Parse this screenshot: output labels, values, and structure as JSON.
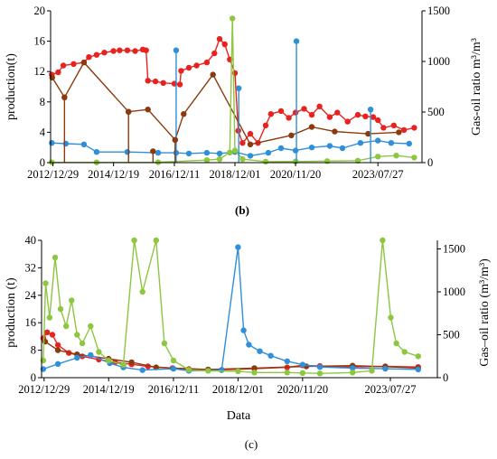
{
  "chart_data": [
    {
      "panel": "(b)",
      "type": "line",
      "title": "",
      "xlabel": "",
      "ylabel": "production(t)",
      "y2label": "Gas-oil ratio m³/m³",
      "xticks": [
        "2012/12/29",
        "2014/12/19",
        "2016/12/11",
        "2018/12/01",
        "2020/11/20",
        "2023/07/27"
      ],
      "yticks": [
        0,
        4,
        8,
        12,
        16,
        20
      ],
      "y2ticks": [
        0,
        500,
        1000,
        1500
      ],
      "ylim": [
        0,
        20
      ],
      "y2lim": [
        0,
        1500
      ],
      "xlim": [
        "2012-12-01",
        "2025-01-01"
      ],
      "grid": false,
      "legend": "none",
      "series": [
        {
          "color": "#e8231f",
          "axis": "left",
          "marker": "circle",
          "points": [
            [
              "2012-12-15",
              11.6
            ],
            [
              "2013-03-01",
              11.9
            ],
            [
              "2013-05-01",
              12.8
            ],
            [
              "2013-09-01",
              13.0
            ],
            [
              "2014-01-01",
              13.2
            ],
            [
              "2014-03-01",
              13.9
            ],
            [
              "2014-06-01",
              14.2
            ],
            [
              "2014-09-01",
              14.5
            ],
            [
              "2014-12-19",
              14.7
            ],
            [
              "2015-03-01",
              14.8
            ],
            [
              "2015-06-01",
              14.8
            ],
            [
              "2015-09-01",
              14.7
            ],
            [
              "2015-12-01",
              14.9
            ],
            [
              "2016-01-10",
              14.8
            ],
            [
              "2016-02-01",
              10.8
            ],
            [
              "2016-05-01",
              10.7
            ],
            [
              "2016-08-01",
              10.5
            ],
            [
              "2016-12-11",
              10.4
            ],
            [
              "2017-02-15",
              10.3
            ],
            [
              "2017-03-01",
              12.1
            ],
            [
              "2017-06-01",
              12.5
            ],
            [
              "2017-09-01",
              12.8
            ],
            [
              "2018-01-01",
              13.2
            ],
            [
              "2018-04-01",
              14.4
            ],
            [
              "2018-06-01",
              16.3
            ],
            [
              "2018-08-01",
              15.6
            ],
            [
              "2018-10-01",
              13.6
            ],
            [
              "2018-12-01",
              11.8
            ],
            [
              "2019-01-10",
              4.2
            ],
            [
              "2019-03-01",
              2.6
            ],
            [
              "2019-06-01",
              3.8
            ],
            [
              "2019-09-01",
              2.6
            ],
            [
              "2019-12-01",
              4.9
            ],
            [
              "2020-02-01",
              6.4
            ],
            [
              "2020-06-01",
              6.8
            ],
            [
              "2020-09-01",
              5.9
            ],
            [
              "2020-11-20",
              6.6
            ],
            [
              "2021-03-01",
              7.1
            ],
            [
              "2021-06-01",
              6.3
            ],
            [
              "2021-09-01",
              7.4
            ],
            [
              "2022-01-01",
              6.0
            ],
            [
              "2022-04-01",
              6.6
            ],
            [
              "2022-08-01",
              5.4
            ],
            [
              "2022-12-01",
              6.3
            ],
            [
              "2023-03-01",
              6.1
            ],
            [
              "2023-06-01",
              6.0
            ],
            [
              "2023-07-27",
              5.6
            ],
            [
              "2023-10-01",
              4.6
            ],
            [
              "2024-02-01",
              4.9
            ],
            [
              "2024-06-01",
              4.3
            ],
            [
              "2024-10-01",
              4.6
            ]
          ]
        },
        {
          "color": "#8b3a0e",
          "axis": "left",
          "marker": "circle",
          "points": [
            [
              "2012-12-20",
              11.2
            ],
            [
              "2013-05-15",
              8.6
            ],
            [
              "2014-01-01",
              13.2
            ],
            [
              "2015-06-15",
              6.7
            ],
            [
              "2016-02-01",
              7.0
            ],
            [
              "2016-12-20",
              3.0
            ],
            [
              "2017-04-01",
              6.4
            ],
            [
              "2018-03-15",
              11.6
            ],
            [
              "2019-06-01",
              2.4
            ],
            [
              "2020-10-01",
              3.6
            ],
            [
              "2021-06-01",
              4.7
            ],
            [
              "2022-03-01",
              4.1
            ],
            [
              "2023-04-01",
              3.8
            ],
            [
              "2024-04-01",
              4.0
            ]
          ]
        },
        {
          "color": "#2f8fd8",
          "axis": "left",
          "marker": "circle",
          "points": [
            [
              "2012-12-15",
              2.6
            ],
            [
              "2013-06-01",
              2.5
            ],
            [
              "2014-01-01",
              2.4
            ],
            [
              "2014-06-01",
              1.4
            ],
            [
              "2015-06-01",
              1.4
            ],
            [
              "2016-06-01",
              1.3
            ],
            [
              "2017-01-01",
              1.3
            ],
            [
              "2017-06-01",
              1.2
            ],
            [
              "2018-01-01",
              1.3
            ],
            [
              "2018-06-01",
              1.2
            ],
            [
              "2018-12-01",
              1.4
            ],
            [
              "2019-06-01",
              0.9
            ],
            [
              "2020-01-01",
              1.3
            ],
            [
              "2020-06-01",
              1.9
            ],
            [
              "2020-11-20",
              1.6
            ],
            [
              "2021-06-01",
              2.0
            ],
            [
              "2022-01-01",
              2.2
            ],
            [
              "2022-06-01",
              1.9
            ],
            [
              "2023-01-01",
              2.6
            ],
            [
              "2023-07-27",
              2.9
            ],
            [
              "2024-01-01",
              2.6
            ],
            [
              "2024-08-01",
              2.5
            ]
          ]
        },
        {
          "color": "#8dc63f",
          "axis": "right",
          "marker": "circle",
          "points": [
            [
              "2012-12-15",
              3
            ],
            [
              "2014-06-01",
              3
            ],
            [
              "2016-06-01",
              4
            ],
            [
              "2018-01-01",
              25
            ],
            [
              "2018-06-01",
              35
            ],
            [
              "2018-10-01",
              100
            ],
            [
              "2018-11-01",
              1425
            ],
            [
              "2018-12-01",
              120
            ],
            [
              "2019-03-01",
              35
            ],
            [
              "2019-12-01",
              10
            ],
            [
              "2020-11-20",
              12
            ],
            [
              "2021-12-01",
              15
            ],
            [
              "2022-12-01",
              20
            ],
            [
              "2023-07-27",
              60
            ],
            [
              "2024-03-01",
              70
            ],
            [
              "2024-10-01",
              50
            ]
          ]
        }
      ],
      "spikes": [
        {
          "color": "#2f8fd8",
          "axis": "left",
          "x": "2017-01-01",
          "y": 14.8
        },
        {
          "color": "#2f8fd8",
          "axis": "left",
          "x": "2020-12-01",
          "y": 16.0
        },
        {
          "color": "#2f8fd8",
          "axis": "left",
          "x": "2019-01-15",
          "y": 9.8
        },
        {
          "color": "#2f8fd8",
          "axis": "left",
          "x": "2023-05-01",
          "y": 7.0
        },
        {
          "color": "#8b3a0e",
          "axis": "left",
          "x": "2013-05-15",
          "y": 8.6
        },
        {
          "color": "#8b3a0e",
          "axis": "left",
          "x": "2015-06-15",
          "y": 6.7
        },
        {
          "color": "#8b3a0e",
          "axis": "left",
          "x": "2016-12-20",
          "y": 3.0
        },
        {
          "color": "#8b3a0e",
          "axis": "left",
          "x": "2016-04-01",
          "y": 1.5
        }
      ]
    },
    {
      "panel": "(c)",
      "type": "line",
      "title": "",
      "xlabel": "Data",
      "ylabel": "production (t)",
      "y2label": "Gas–oil ratio (m³/m³)",
      "xticks": [
        "2012/12/29",
        "2014/12/19",
        "2016/12/11",
        "2018/12/01",
        "2020/11/20",
        "2023/07/27"
      ],
      "yticks": [
        0,
        8,
        16,
        24,
        32,
        40
      ],
      "y2ticks": [
        0,
        500,
        1000,
        1500
      ],
      "ylim": [
        0,
        40
      ],
      "y2lim": [
        0,
        1600
      ],
      "xlim": [
        "2012-12-01",
        "2025-01-01"
      ],
      "grid": false,
      "legend": "none",
      "series": [
        {
          "color": "#e8231f",
          "axis": "left",
          "marker": "circle",
          "points": [
            [
              "2012-12-20",
              11.5
            ],
            [
              "2013-02-01",
              13.2
            ],
            [
              "2013-04-01",
              12.5
            ],
            [
              "2013-06-01",
              9.5
            ],
            [
              "2013-10-01",
              7.2
            ],
            [
              "2014-03-01",
              6.2
            ],
            [
              "2014-09-01",
              5.3
            ],
            [
              "2015-03-01",
              4.5
            ],
            [
              "2015-09-01",
              3.9
            ],
            [
              "2016-03-01",
              3.3
            ],
            [
              "2016-12-01",
              2.8
            ],
            [
              "2017-06-01",
              2.5
            ],
            [
              "2018-06-01",
              2.3
            ],
            [
              "2019-06-01",
              2.6
            ],
            [
              "2020-06-01",
              3.0
            ],
            [
              "2020-11-20",
              3.6
            ],
            [
              "2021-06-01",
              3.4
            ],
            [
              "2022-06-01",
              3.1
            ],
            [
              "2023-06-01",
              3.3
            ],
            [
              "2024-06-01",
              3.1
            ]
          ]
        },
        {
          "color": "#8b3a0e",
          "axis": "left",
          "marker": "circle",
          "points": [
            [
              "2013-01-10",
              10.5
            ],
            [
              "2013-06-01",
              8.0
            ],
            [
              "2014-01-01",
              6.8
            ],
            [
              "2014-12-19",
              5.5
            ],
            [
              "2015-09-01",
              4.5
            ],
            [
              "2016-06-01",
              3.0
            ],
            [
              "2018-01-01",
              2.4
            ],
            [
              "2019-06-01",
              2.8
            ],
            [
              "2021-01-01",
              3.3
            ],
            [
              "2022-06-01",
              3.5
            ],
            [
              "2023-06-01",
              3.2
            ],
            [
              "2024-06-01",
              2.8
            ]
          ]
        },
        {
          "color": "#2f8fd8",
          "axis": "left",
          "marker": "circle",
          "points": [
            [
              "2012-12-20",
              2.5
            ],
            [
              "2013-06-01",
              4.0
            ],
            [
              "2014-01-01",
              5.8
            ],
            [
              "2014-06-01",
              6.6
            ],
            [
              "2015-01-01",
              4.2
            ],
            [
              "2015-06-01",
              3.0
            ],
            [
              "2016-01-01",
              2.2
            ],
            [
              "2016-12-11",
              2.6
            ],
            [
              "2017-06-01",
              2.0
            ],
            [
              "2018-06-01",
              2.2
            ],
            [
              "2018-12-01",
              38.0
            ],
            [
              "2019-02-01",
              13.8
            ],
            [
              "2019-04-01",
              9.6
            ],
            [
              "2019-08-01",
              7.7
            ],
            [
              "2019-12-01",
              6.4
            ],
            [
              "2020-06-01",
              4.8
            ],
            [
              "2020-11-20",
              3.8
            ],
            [
              "2021-06-01",
              3.1
            ],
            [
              "2022-06-01",
              2.8
            ],
            [
              "2023-06-01",
              2.6
            ],
            [
              "2024-06-01",
              2.4
            ]
          ]
        },
        {
          "color": "#8dc63f",
          "axis": "right",
          "marker": "circle",
          "points": [
            [
              "2012-12-20",
              200
            ],
            [
              "2013-01-15",
              1100
            ],
            [
              "2013-03-01",
              700
            ],
            [
              "2013-05-01",
              1400
            ],
            [
              "2013-07-01",
              800
            ],
            [
              "2013-09-01",
              600
            ],
            [
              "2013-11-01",
              900
            ],
            [
              "2014-01-01",
              500
            ],
            [
              "2014-03-01",
              400
            ],
            [
              "2014-06-01",
              600
            ],
            [
              "2014-09-01",
              300
            ],
            [
              "2014-12-19",
              200
            ],
            [
              "2015-06-01",
              150
            ],
            [
              "2015-10-01",
              1600
            ],
            [
              "2016-01-01",
              1000
            ],
            [
              "2016-06-01",
              1600
            ],
            [
              "2016-09-01",
              400
            ],
            [
              "2016-12-11",
              200
            ],
            [
              "2017-06-01",
              90
            ],
            [
              "2018-01-01",
              80
            ],
            [
              "2018-12-01",
              75
            ],
            [
              "2019-06-01",
              60
            ],
            [
              "2020-06-01",
              60
            ],
            [
              "2020-11-20",
              55
            ],
            [
              "2021-06-01",
              50
            ],
            [
              "2022-06-01",
              60
            ],
            [
              "2023-01-01",
              80
            ],
            [
              "2023-05-01",
              1600
            ],
            [
              "2023-08-01",
              700
            ],
            [
              "2023-10-01",
              400
            ],
            [
              "2024-01-01",
              300
            ],
            [
              "2024-06-01",
              250
            ]
          ]
        }
      ]
    }
  ],
  "captions": {
    "b": "(b)",
    "c": "(c)"
  }
}
